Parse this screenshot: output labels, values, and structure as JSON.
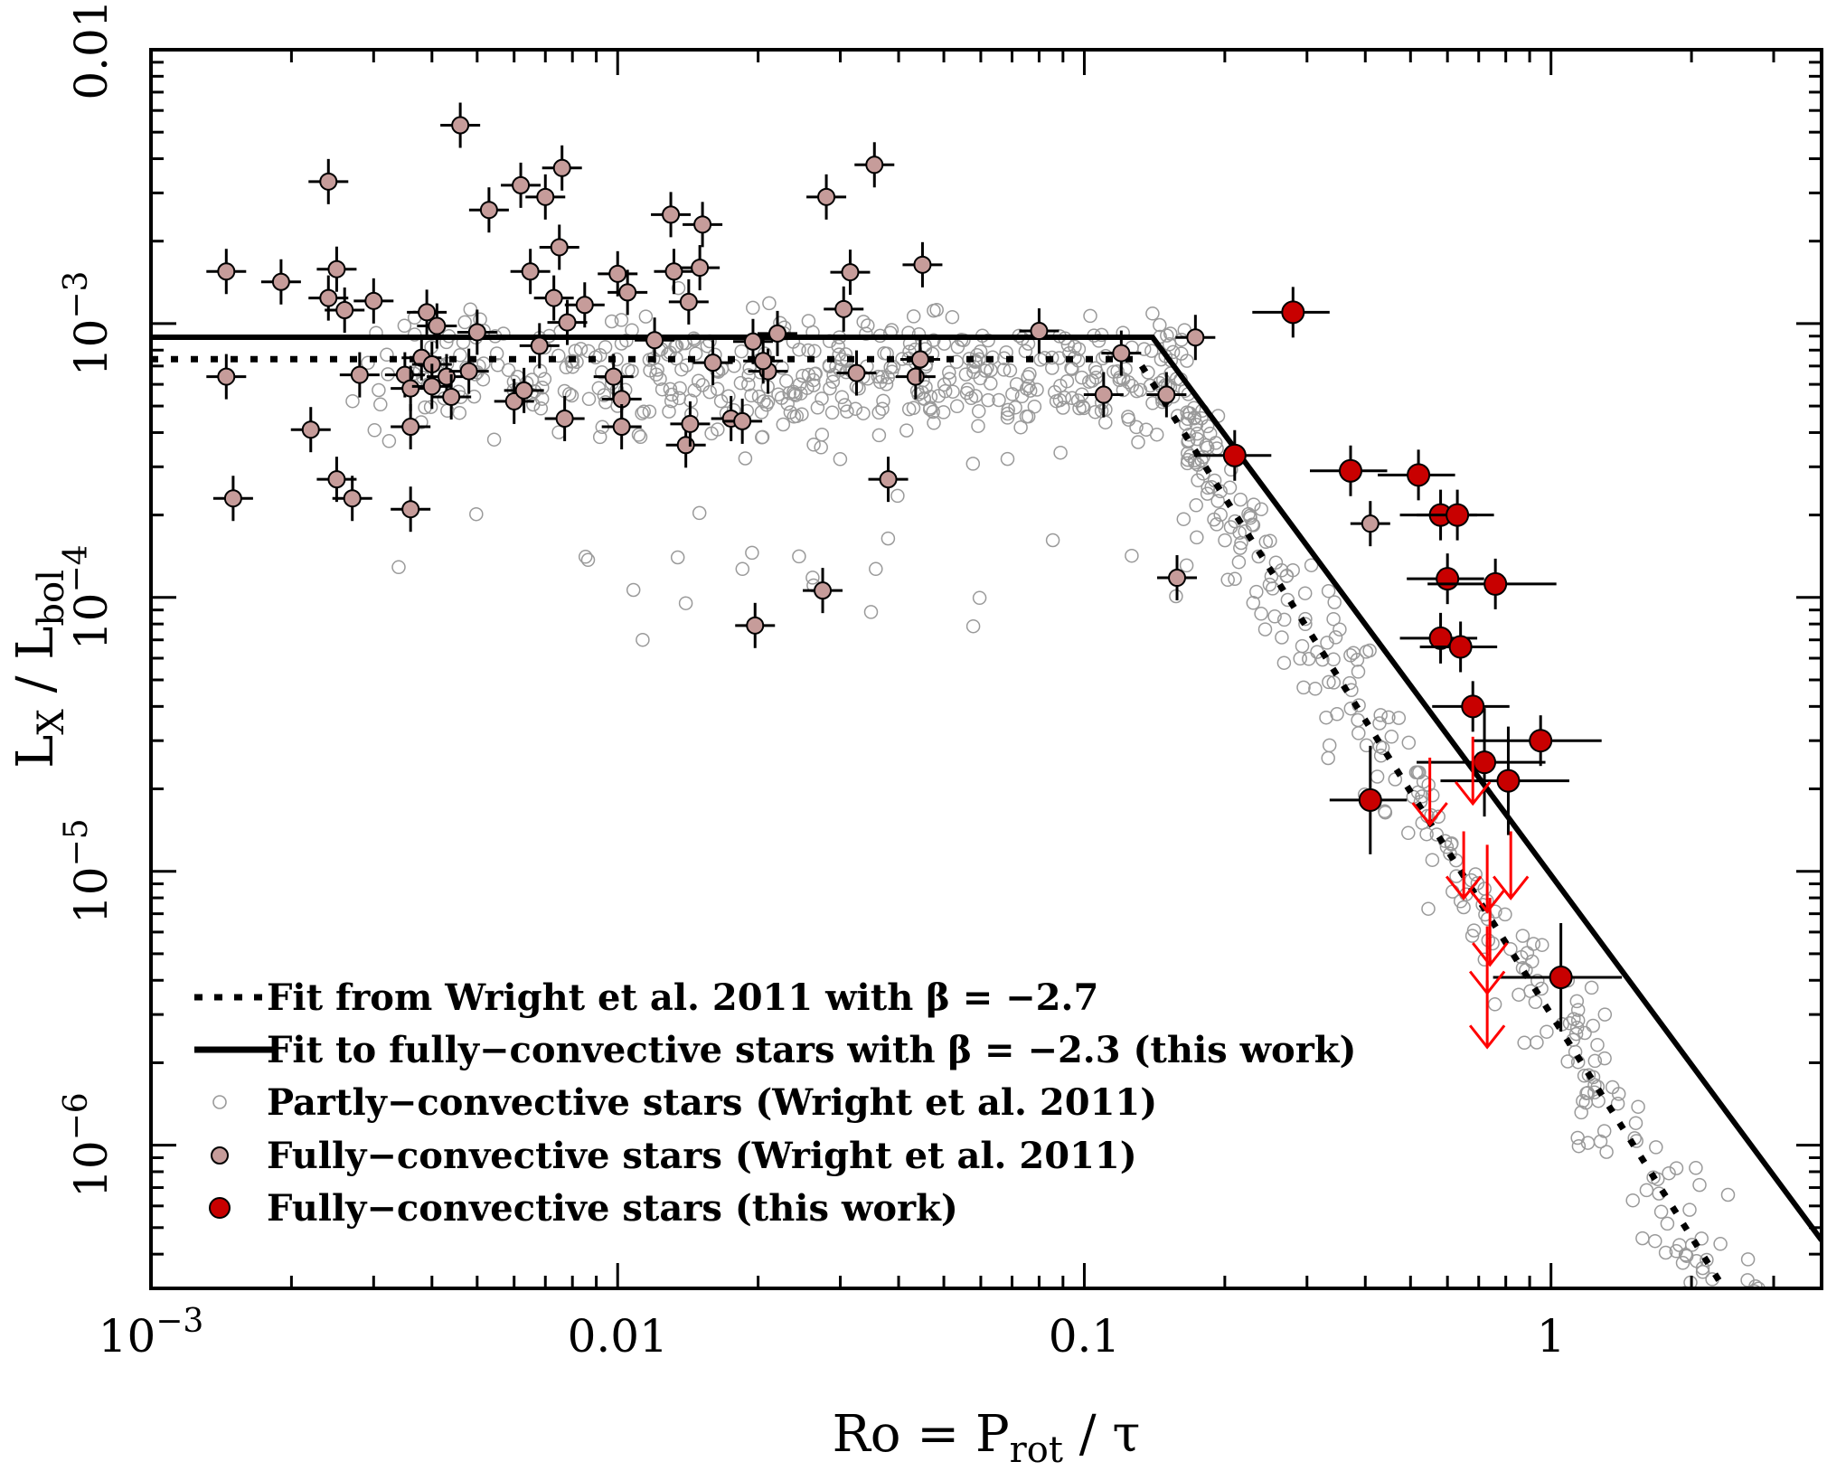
{
  "chart_data": {
    "type": "scatter",
    "xlabel": {
      "base": "Ro = P",
      "sub": "rot",
      "tail": " / τ"
    },
    "ylabel": {
      "base": "L",
      "sub1": "X",
      "mid": " / L",
      "sub2": "bol"
    },
    "xscale": "log",
    "yscale": "log",
    "xlim": [
      0.001,
      3.8
    ],
    "ylim": [
      3e-07,
      0.01
    ],
    "x_ticks": [
      {
        "value": 0.001,
        "base": "10",
        "exp": "−3"
      },
      {
        "value": 0.01,
        "text": "0.01"
      },
      {
        "value": 0.1,
        "text": "0.1"
      },
      {
        "value": 1,
        "text": "1"
      }
    ],
    "y_ticks": [
      {
        "value": 0.01,
        "text": "0.01"
      },
      {
        "value": 0.001,
        "base": "10",
        "exp": "−3"
      },
      {
        "value": 0.0001,
        "base": "10",
        "exp": "−4"
      },
      {
        "value": 1e-05,
        "base": "10",
        "exp": "−5"
      },
      {
        "value": 1e-06,
        "base": "10",
        "exp": "−6"
      }
    ],
    "legend": {
      "position": "bottom-left",
      "entries": [
        {
          "key": "dotted-line",
          "label": "Fit from Wright et al. 2011 with β = −2.7"
        },
        {
          "key": "solid-line",
          "label": "Fit to fully−convective stars with β = −2.3 (this work)"
        },
        {
          "key": "open-circle",
          "label": "Partly−convective stars (Wright et al. 2011)"
        },
        {
          "key": "pink-circle",
          "label": "Fully−convective stars (Wright et al. 2011)"
        },
        {
          "key": "red-circle",
          "label": "Fully−convective stars (this work)"
        }
      ]
    },
    "fit_lines": [
      {
        "name": "Fit from Wright et al. 2011 with β = −2.7",
        "style": "dotted",
        "ro_sat": 0.13,
        "log_rx_sat": -3.13,
        "beta": -2.7,
        "x_start": 0.001,
        "x_end": 3.7
      },
      {
        "name": "Fit to fully−convective stars with β = −2.3 (this work)",
        "style": "solid",
        "ro_sat": 0.14,
        "log_rx_sat": -3.05,
        "beta": -2.3,
        "x_start": 0.001,
        "x_end": 3.8
      }
    ],
    "series": [
      {
        "name": "Partly−convective stars (Wright et al. 2011)",
        "marker": "open-circle",
        "color": "#9a9a9a",
        "n_points": 820,
        "distribution": {
          "saturated_logx_range": [
            -2.6,
            -0.78
          ],
          "saturated_logy_mean": -3.2,
          "saturated_logy_scatter": 0.2,
          "unsaturated_logx_range": [
            -0.78,
            0.55
          ],
          "unsaturated_logy_scatter": 0.25
        }
      },
      {
        "name": "Fully−convective stars (Wright et al. 2011)",
        "marker": "pink-circle",
        "color": "#c69c9a",
        "points": [
          [
            0.00145,
            0.00155
          ],
          [
            0.00145,
            0.00064
          ],
          [
            0.0015,
            0.00023
          ],
          [
            0.0019,
            0.00142
          ],
          [
            0.0022,
            0.00041
          ],
          [
            0.0024,
            0.0033
          ],
          [
            0.0024,
            0.00124
          ],
          [
            0.0025,
            0.00158
          ],
          [
            0.0025,
            0.00027
          ],
          [
            0.0026,
            0.00112
          ],
          [
            0.0027,
            0.00023
          ],
          [
            0.0028,
            0.00065
          ],
          [
            0.003,
            0.00121
          ],
          [
            0.0035,
            0.00065
          ],
          [
            0.0036,
            0.00058
          ],
          [
            0.0036,
            0.00021
          ],
          [
            0.0036,
            0.00042
          ],
          [
            0.0038,
            0.00075
          ],
          [
            0.0039,
            0.0011
          ],
          [
            0.004,
            0.00071
          ],
          [
            0.004,
            0.00059
          ],
          [
            0.0041,
            0.00098
          ],
          [
            0.0043,
            0.00064
          ],
          [
            0.0044,
            0.00054
          ],
          [
            0.0046,
            0.0053
          ],
          [
            0.0048,
            0.00067
          ],
          [
            0.005,
            0.00093
          ],
          [
            0.0053,
            0.0026
          ],
          [
            0.006,
            0.00052
          ],
          [
            0.0062,
            0.0032
          ],
          [
            0.0063,
            0.00057
          ],
          [
            0.0065,
            0.00155
          ],
          [
            0.0068,
            0.00083
          ],
          [
            0.007,
            0.0029
          ],
          [
            0.0073,
            0.00124
          ],
          [
            0.0075,
            0.0019
          ],
          [
            0.0076,
            0.0037
          ],
          [
            0.0077,
            0.00045
          ],
          [
            0.0078,
            0.00101
          ],
          [
            0.0085,
            0.00117
          ],
          [
            0.01,
            0.00152
          ],
          [
            0.0098,
            0.00064
          ],
          [
            0.0102,
            0.00053
          ],
          [
            0.0102,
            0.00042
          ],
          [
            0.0105,
            0.0013
          ],
          [
            0.012,
            0.00087
          ],
          [
            0.013,
            0.0025
          ],
          [
            0.0132,
            0.00155
          ],
          [
            0.014,
            0.00036
          ],
          [
            0.0142,
            0.0012
          ],
          [
            0.0143,
            0.00043
          ],
          [
            0.015,
            0.0016
          ],
          [
            0.0152,
            0.0023
          ],
          [
            0.016,
            0.00072
          ],
          [
            0.0175,
            0.00045
          ],
          [
            0.0185,
            0.00044
          ],
          [
            0.0195,
            0.00086
          ],
          [
            0.0197,
            7.9e-05
          ],
          [
            0.021,
            0.00067
          ],
          [
            0.0205,
            0.00073
          ],
          [
            0.022,
            0.00092
          ],
          [
            0.0275,
            0.000106
          ],
          [
            0.028,
            0.0029
          ],
          [
            0.0305,
            0.00113
          ],
          [
            0.0315,
            0.00154
          ],
          [
            0.0325,
            0.00066
          ],
          [
            0.0355,
            0.0038
          ],
          [
            0.038,
            0.00027
          ],
          [
            0.0435,
            0.00064
          ],
          [
            0.0445,
            0.00074
          ],
          [
            0.045,
            0.00164
          ],
          [
            0.08,
            0.00094
          ],
          [
            0.11,
            0.00055
          ],
          [
            0.12,
            0.00078
          ],
          [
            0.15,
            0.00055
          ],
          [
            0.158,
            0.000118
          ],
          [
            0.173,
            0.00089
          ],
          [
            0.41,
            0.000186
          ]
        ]
      },
      {
        "name": "Fully−convective stars (this work)",
        "marker": "red-circle",
        "color": "#c80000",
        "points": [
          [
            0.21,
            0.00033
          ],
          [
            0.28,
            0.0011
          ],
          [
            0.372,
            0.00029
          ],
          [
            0.41,
            1.82e-05
          ],
          [
            0.52,
            0.00028
          ],
          [
            0.58,
            0.0002
          ],
          [
            0.6,
            0.000117
          ],
          [
            0.58,
            7.1e-05
          ],
          [
            0.64,
            6.6e-05
          ],
          [
            0.63,
            0.0002
          ],
          [
            0.68,
            4e-05
          ],
          [
            0.72,
            2.5e-05
          ],
          [
            0.76,
            0.000112
          ],
          [
            0.81,
            2.14e-05
          ],
          [
            0.95,
            3e-05
          ],
          [
            1.05,
            4.1e-06
          ]
        ]
      },
      {
        "name": "upper limits (this work)",
        "marker": "red-arrow",
        "color": "#ff0000",
        "points": [
          [
            0.55,
            2.6e-05
          ],
          [
            0.68,
            3.1e-05
          ],
          [
            0.65,
            1.4e-05
          ],
          [
            0.73,
            1.25e-05
          ],
          [
            0.82,
            1.4e-05
          ],
          [
            0.74,
            8e-06
          ],
          [
            0.73,
            6.3e-06
          ],
          [
            0.73,
            4e-06
          ]
        ]
      }
    ]
  }
}
